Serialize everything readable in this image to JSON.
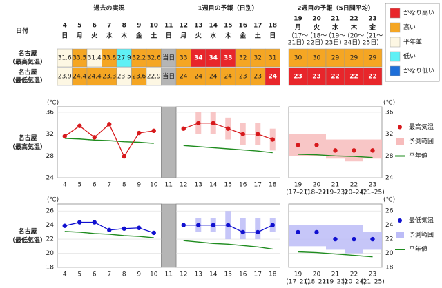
{
  "table": {
    "groups": [
      "過去の実況",
      "1週目の予報（日別）",
      "2週目の予報（5日間平均）"
    ],
    "date_label": "日付",
    "days": [
      "4",
      "5",
      "6",
      "7",
      "8",
      "9",
      "10",
      "11",
      "12",
      "13",
      "14",
      "15",
      "16",
      "17",
      "18",
      "19",
      "20",
      "21",
      "22",
      "23"
    ],
    "weekdays": [
      "日",
      "月",
      "火",
      "水",
      "木",
      "金",
      "土",
      "日",
      "月",
      "火",
      "水",
      "木",
      "金",
      "土",
      "日",
      "月",
      "火",
      "水",
      "木",
      "金"
    ],
    "periods": [
      null,
      null,
      null,
      null,
      null,
      null,
      null,
      null,
      null,
      null,
      null,
      null,
      null,
      null,
      null,
      [
        "（17～",
        "21日）"
      ],
      [
        "（18～",
        "22日）"
      ],
      [
        "（19～",
        "23日）"
      ],
      [
        "（20～",
        "24日）"
      ],
      [
        "（21～",
        "25日）"
      ]
    ],
    "rows": [
      {
        "label": [
          "名古屋",
          "（最高気温）"
        ],
        "values": [
          31.6,
          33.5,
          31.4,
          33.8,
          27.9,
          32.2,
          32.6,
          "当日",
          33,
          34,
          34,
          33,
          32,
          32,
          31,
          30,
          30,
          29,
          29,
          29
        ],
        "colors": [
          "#fdf7e3",
          "#f5a623",
          "#fdf7e3",
          "#f5a623",
          "#5ff0f5",
          "#f5a623",
          "#f5a623",
          "#b5b5b5",
          "#f5a623",
          "#e8262b",
          "#e8262b",
          "#e8262b",
          "#f5a623",
          "#f5a623",
          "#f5a623",
          "#f5a623",
          "#f5a623",
          "#f5a623",
          "#f5a623",
          "#f5a623"
        ]
      },
      {
        "label": [
          "名古屋",
          "（最低気温）"
        ],
        "values": [
          23.9,
          24.4,
          24.4,
          23.3,
          23.5,
          23.6,
          22.9,
          "当日",
          24,
          24,
          24,
          24,
          23,
          23,
          24,
          23,
          23,
          22,
          22,
          22
        ],
        "colors": [
          "#fdf7e3",
          "#f5a623",
          "#f5a623",
          "#f5a623",
          "#fdf7e3",
          "#f5a623",
          "#fdf7e3",
          "#b5b5b5",
          "#f5a623",
          "#f5a623",
          "#f5a623",
          "#f5a623",
          "#f5a623",
          "#f5a623",
          "#e8262b",
          "#e8262b",
          "#e8262b",
          "#e8262b",
          "#e8262b",
          "#e8262b"
        ]
      }
    ]
  },
  "legend": [
    {
      "label": "かなり高い",
      "color": "#e8262b"
    },
    {
      "label": "高い",
      "color": "#f5a623"
    },
    {
      "label": "平年並",
      "color": "#fdf7e3"
    },
    {
      "label": "低い",
      "color": "#5ff0f5"
    },
    {
      "label": "かなり低い",
      "color": "#1e6fd9"
    }
  ],
  "chart_data": [
    {
      "type": "line",
      "label": [
        "名古屋",
        "（最高気温）"
      ],
      "unit": "(℃)",
      "categories": [
        "4",
        "5",
        "6",
        "7",
        "8",
        "9",
        "10",
        "11",
        "12",
        "13",
        "14",
        "15",
        "16",
        "17",
        "18",
        "19",
        "20",
        "21",
        "22",
        "23"
      ],
      "category_notes": [
        null,
        null,
        null,
        null,
        null,
        null,
        null,
        null,
        null,
        null,
        null,
        null,
        null,
        null,
        null,
        "(17–21)",
        "(18–22)",
        "(19–23)",
        "(20–24)",
        "(21–25)"
      ],
      "ylim": [
        24,
        37
      ],
      "yticks": [
        24,
        28,
        32,
        36
      ],
      "series": [
        {
          "name": "最高気温",
          "color": "#d7191c",
          "values": [
            31.6,
            33.5,
            31.4,
            33.8,
            27.9,
            32.2,
            32.6,
            null,
            33,
            34,
            34,
            33,
            32,
            32,
            31,
            30,
            30,
            29,
            29,
            29
          ]
        },
        {
          "name": "予測範囲",
          "color": "#f7bcbc",
          "low": [
            null,
            null,
            null,
            null,
            null,
            null,
            null,
            null,
            null,
            32,
            32,
            31,
            30,
            30,
            29,
            28,
            28,
            27.5,
            27,
            27.5
          ],
          "high": [
            null,
            null,
            null,
            null,
            null,
            null,
            null,
            null,
            null,
            36,
            36,
            35,
            34,
            34,
            33,
            32,
            32,
            31,
            31,
            31
          ]
        },
        {
          "name": "平年値",
          "color": "#1f8c1f",
          "values": [
            31.2,
            31.1,
            30.9,
            30.8,
            30.6,
            30.5,
            30.3,
            null,
            29.9,
            29.7,
            29.5,
            29.3,
            29.1,
            28.9,
            28.6,
            28.3,
            28.2,
            28.0,
            27.9,
            27.7
          ]
        }
      ]
    },
    {
      "type": "line",
      "label": [
        "名古屋",
        "（最低気温）"
      ],
      "unit": "(℃)",
      "categories": [
        "4",
        "5",
        "6",
        "7",
        "8",
        "9",
        "10",
        "11",
        "12",
        "13",
        "14",
        "15",
        "16",
        "17",
        "18",
        "19",
        "20",
        "21",
        "22",
        "23"
      ],
      "category_notes": [
        null,
        null,
        null,
        null,
        null,
        null,
        null,
        null,
        null,
        null,
        null,
        null,
        null,
        null,
        null,
        "(17–21)",
        "(18–22)",
        "(19–23)",
        "(20–24)",
        "(21–25)"
      ],
      "ylim": [
        18,
        27
      ],
      "yticks": [
        18,
        20,
        22,
        24,
        26
      ],
      "series": [
        {
          "name": "最低気温",
          "color": "#1010d0",
          "values": [
            23.9,
            24.4,
            24.4,
            23.3,
            23.5,
            23.6,
            22.9,
            null,
            24,
            24,
            24,
            24,
            23,
            23,
            24,
            23,
            23,
            22,
            22,
            22
          ]
        },
        {
          "name": "予測範囲",
          "color": "#bcbcf7",
          "low": [
            null,
            null,
            null,
            null,
            null,
            null,
            null,
            null,
            null,
            23,
            23,
            22,
            22,
            22,
            23,
            21,
            21,
            20.5,
            20,
            20.5
          ],
          "high": [
            null,
            null,
            null,
            null,
            null,
            null,
            null,
            null,
            null,
            25,
            25,
            26,
            25,
            25,
            25,
            24,
            24,
            24,
            24,
            23
          ]
        },
        {
          "name": "平年値",
          "color": "#1f8c1f",
          "values": [
            23.1,
            23.0,
            22.8,
            22.7,
            22.5,
            22.4,
            22.2,
            null,
            21.8,
            21.6,
            21.4,
            21.3,
            21.1,
            20.9,
            20.6,
            20.2,
            20.1,
            19.9,
            19.7,
            19.5
          ]
        }
      ]
    }
  ]
}
